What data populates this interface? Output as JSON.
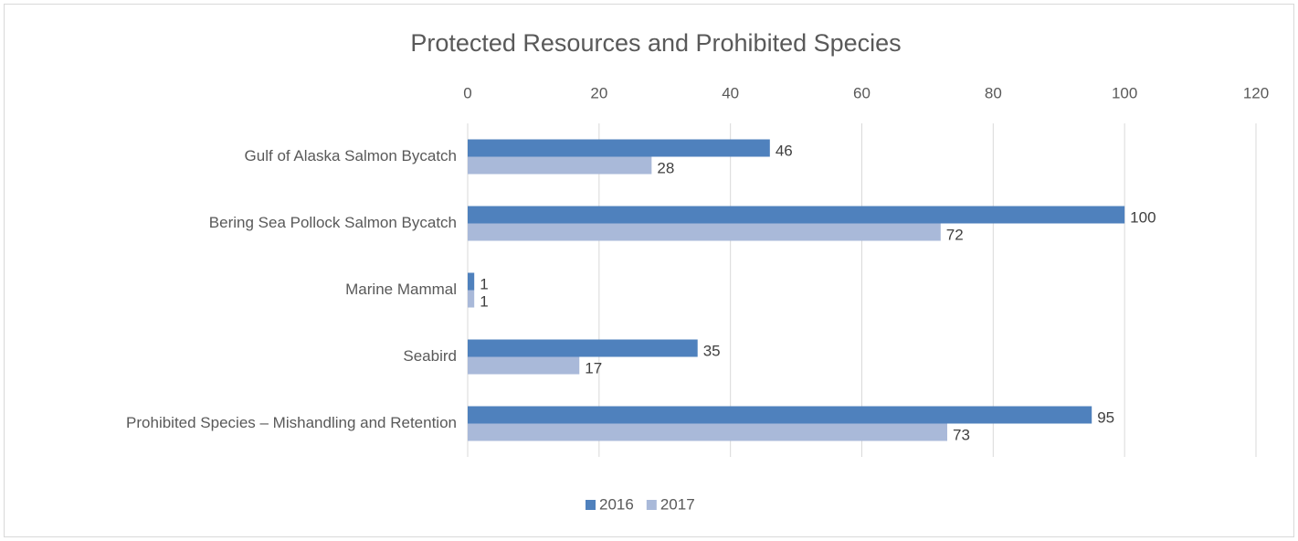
{
  "chart_data": {
    "type": "bar",
    "orientation": "horizontal",
    "title": "Protected Resources and Prohibited Species",
    "categories": [
      "Gulf of Alaska Salmon Bycatch",
      "Bering Sea Pollock Salmon Bycatch",
      "Marine Mammal",
      "Seabird",
      "Prohibited Species – Mishandling and Retention"
    ],
    "series": [
      {
        "name": "2016",
        "color": "#4f81bd",
        "values": [
          46,
          100,
          1,
          35,
          95
        ]
      },
      {
        "name": "2017",
        "color": "#a9b9d9",
        "values": [
          28,
          72,
          1,
          17,
          73
        ]
      }
    ],
    "xlim": [
      0,
      120
    ],
    "xticks": [
      0,
      20,
      40,
      60,
      80,
      100,
      120
    ],
    "grid": true,
    "legend": "bottom"
  }
}
